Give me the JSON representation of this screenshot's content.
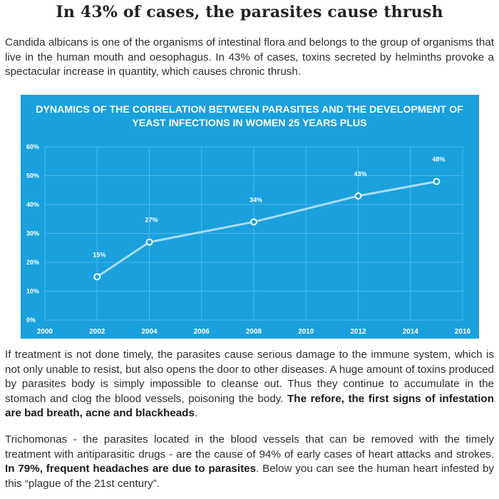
{
  "article": {
    "heading": "In 43% of cases, the parasites cause thrush",
    "paragraph1": "Candida albicans is one of the organisms of intestinal flora and belongs to the group of organisms that live in the human mouth and oesophagus. In 43% of cases, toxins secreted by helminths provoke a spectacular increase in quantity, which causes chronic thrush.",
    "paragraph2_text": "If treatment is not done timely, the parasites cause serious damage to the immune system, which is not only unable to resist, but also opens the door to other diseases. A huge amount of toxins produced by parasites body is simply impossible to cleanse out. Thus they continue to accumulate in the stomach and clog the blood vessels, poisoning the body. ",
    "paragraph2_bold": "The refore, the first signs of infestation are bad breath, acne and blackheads",
    "paragraph2_end": ".",
    "paragraph3_text": "Trichomonas - the parasites located in the blood vessels that can be removed with the timely treatment with antiparasitic drugs - are the cause of 94% of early cases of heart attacks and strokes. ",
    "paragraph3_bold": "In 79%, frequent headaches are due to parasites",
    "paragraph3_end": ". Below you can see the human heart infested by this “plague of the 21st century”."
  },
  "chart_data": {
    "type": "line",
    "title_line1": "DYNAMICS OF THE CORRELATION BETWEEN PARASITES AND THE DEVELOPMENT OF",
    "title_line2": "YEAST INFECTIONS IN WOMEN 25 YEARS PLUS",
    "x": [
      2002,
      2004,
      2008,
      2012,
      2015
    ],
    "y": [
      15,
      27,
      34,
      43,
      48
    ],
    "point_labels": [
      "15%",
      "27%",
      "34%",
      "43%",
      "48%"
    ],
    "xlim": [
      2000,
      2016
    ],
    "ylim": [
      0,
      60
    ],
    "x_ticks": [
      "2000",
      "2002",
      "2004",
      "2006",
      "2008",
      "2010",
      "2012",
      "2014",
      "2016"
    ],
    "x_tick_values": [
      2000,
      2002,
      2004,
      2006,
      2008,
      2010,
      2012,
      2014,
      2016
    ],
    "y_ticks": [
      "0%",
      "10%",
      "20%",
      "30%",
      "40%",
      "50%",
      "60%"
    ],
    "y_tick_values": [
      0,
      10,
      20,
      30,
      40,
      50,
      60
    ],
    "grid": true,
    "colors": {
      "background": "#1aa0dd",
      "line": "#a8dcf6",
      "grid": "#4fb8e8",
      "text": "#ffffff"
    }
  }
}
